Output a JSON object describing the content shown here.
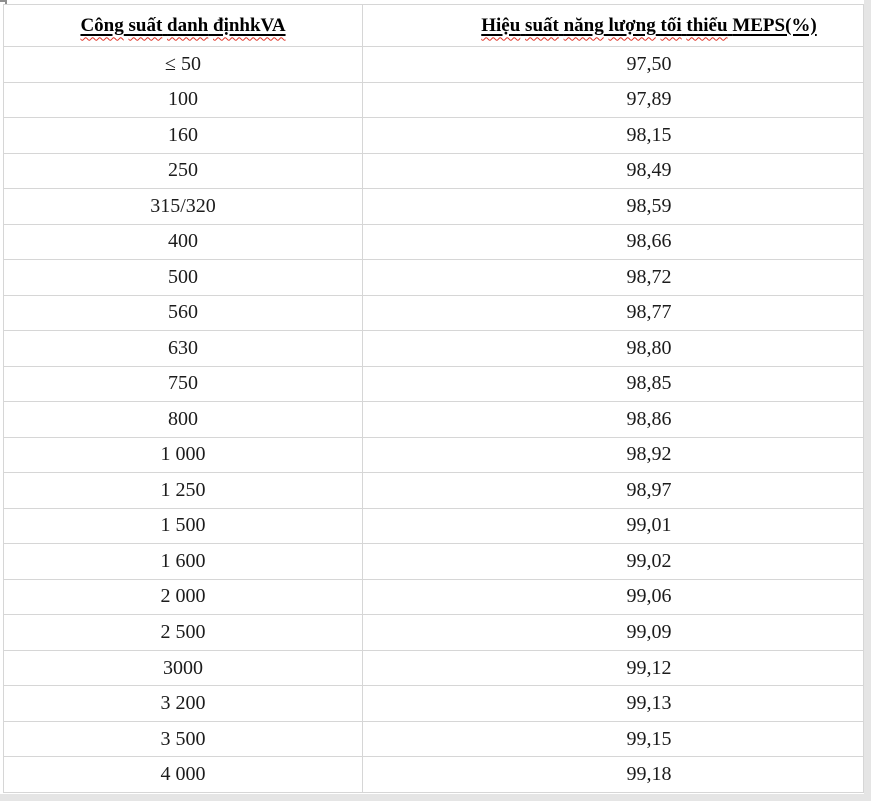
{
  "page": {
    "background": "#ffffff",
    "edge_color": "#e5e5e5",
    "border_color": "#d6d6d6",
    "spellcheck_red": "#df3226",
    "text_color": "#1c1c1c"
  },
  "table": {
    "columns": [
      {
        "header": "Công suất danh địnhkVA",
        "spellcheck_wavy": "all-words"
      },
      {
        "header_wavy_part": "Hiệu suất năng lượng tối thiểu",
        "header_plain_part": "MEPS(%)"
      }
    ],
    "rows": [
      {
        "capacity": "≤ 50",
        "meps": "97,50"
      },
      {
        "capacity": "100",
        "meps": "97,89"
      },
      {
        "capacity": "160",
        "meps": "98,15"
      },
      {
        "capacity": "250",
        "meps": "98,49"
      },
      {
        "capacity": "315/320",
        "meps": "98,59"
      },
      {
        "capacity": "400",
        "meps": "98,66"
      },
      {
        "capacity": "500",
        "meps": "98,72"
      },
      {
        "capacity": "560",
        "meps": "98,77"
      },
      {
        "capacity": "630",
        "meps": "98,80"
      },
      {
        "capacity": "750",
        "meps": "98,85"
      },
      {
        "capacity": "800",
        "meps": "98,86"
      },
      {
        "capacity": "1 000",
        "meps": "98,92"
      },
      {
        "capacity": "1 250",
        "meps": "98,97"
      },
      {
        "capacity": "1 500",
        "meps": "99,01"
      },
      {
        "capacity": "1 600",
        "meps": "99,02"
      },
      {
        "capacity": "2 000",
        "meps": "99,06"
      },
      {
        "capacity": "2 500",
        "meps": "99,09"
      },
      {
        "capacity": "3000",
        "meps": "99,12"
      },
      {
        "capacity": "3 200",
        "meps": "99,13"
      },
      {
        "capacity": "3 500",
        "meps": "99,15"
      },
      {
        "capacity": "4 000",
        "meps": "99,18"
      }
    ]
  }
}
